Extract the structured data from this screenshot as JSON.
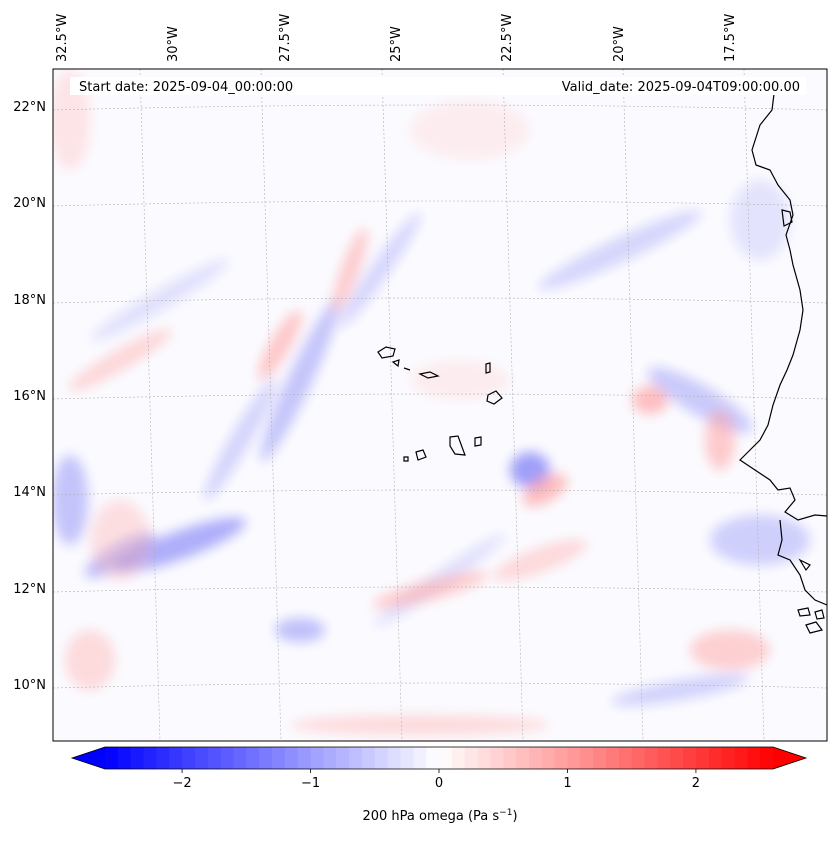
{
  "map": {
    "start_date_text": "Start date: 2025-09-04_00:00:00",
    "valid_date_text": "Valid_date: 2025-09-04T09:00:00.00",
    "longitude_labels": [
      "32.5°W",
      "30°W",
      "27.5°W",
      "25°W",
      "22.5°W",
      "20°W",
      "17.5°W"
    ],
    "latitude_labels": [
      "22°N",
      "20°N",
      "18°N",
      "16°N",
      "14°N",
      "12°N",
      "10°N"
    ],
    "extent": {
      "lon_min": -32.8,
      "lon_max": -15.5,
      "lat_min": 8.9,
      "lat_max": 22.8
    },
    "field": "200 hPa omega",
    "land_fill": "none",
    "coastline_color": "#000000",
    "gridline_style": "dotted-grey"
  },
  "colorbar": {
    "title_text": "200 hPa omega (Pa s",
    "title_sup": "−1",
    "title_close": ")",
    "ticks": [
      "−2",
      "−1",
      "0",
      "1",
      "2"
    ],
    "tick_values": [
      -2,
      -1,
      0,
      1,
      2
    ],
    "range": [
      -2.6,
      2.6
    ],
    "cmap": "bwr",
    "low_color": "#0000ff",
    "mid_color": "#ffffff",
    "high_color": "#ff0000",
    "extend": "both"
  }
}
